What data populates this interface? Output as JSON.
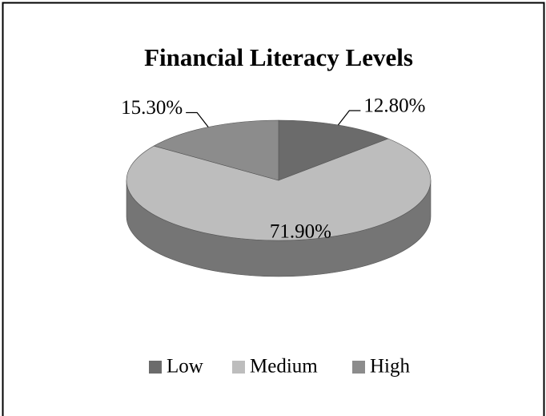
{
  "chart_data": {
    "type": "pie",
    "title": "Financial Literacy Levels",
    "categories": [
      "Low",
      "Medium",
      "High"
    ],
    "values": [
      12.8,
      71.9,
      15.3
    ],
    "value_labels": [
      "12.80%",
      "71.90%",
      "15.30%"
    ],
    "colors": [
      "#6b6b6b",
      "#bdbdbd",
      "#8c8c8c"
    ],
    "legend": "bottom"
  }
}
